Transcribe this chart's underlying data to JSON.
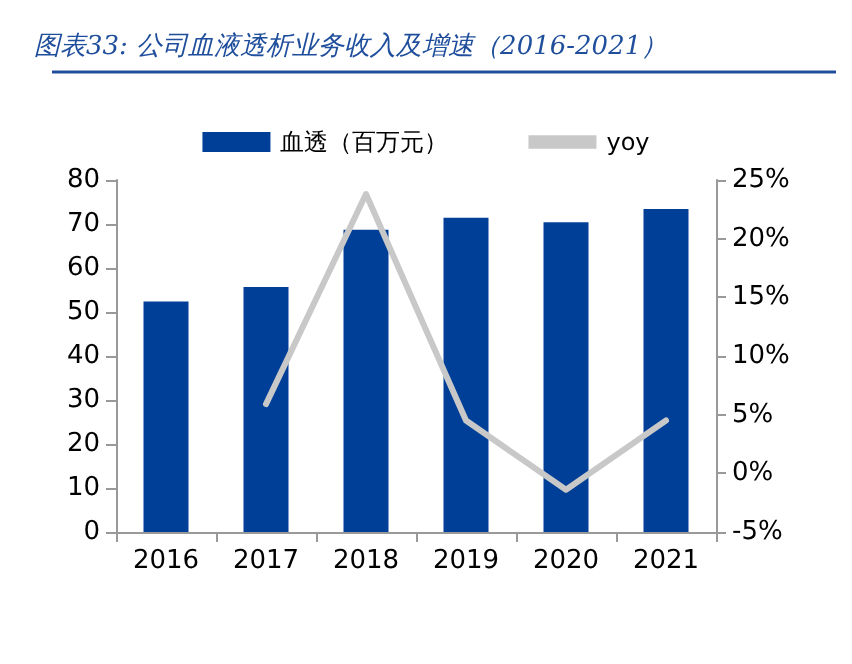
{
  "chart_data": {
    "type": "bar",
    "title": "图表33: 公司血液透析业务收入及增速（2016-2021）",
    "categories": [
      "2016",
      "2017",
      "2018",
      "2019",
      "2020",
      "2021"
    ],
    "series": [
      {
        "name": "血透（百万元）",
        "color": "#003f98",
        "values": [
          52.4,
          55.7,
          68.7,
          71.4,
          70.4,
          73.4
        ]
      },
      {
        "name": "yoy",
        "type": "line",
        "axis": "y2",
        "color": "#c8c8c8",
        "marker": "none",
        "values": [
          null,
          5.9,
          23.8,
          4.5,
          -1.4,
          4.5
        ]
      }
    ],
    "ylim": [
      0,
      80
    ],
    "yticks": [
      0,
      10,
      20,
      30,
      40,
      50,
      60,
      70,
      80
    ],
    "y2lim": [
      -5,
      25
    ],
    "y2ticks": [
      {
        "value": -5,
        "label": "-5%"
      },
      {
        "value": 0,
        "label": "0%"
      },
      {
        "value": 5,
        "label": "5%"
      },
      {
        "value": 10,
        "label": "10%"
      },
      {
        "value": 15,
        "label": "15%"
      },
      {
        "value": 20,
        "label": "20%"
      },
      {
        "value": 25,
        "label": "25%"
      }
    ],
    "grid": false,
    "legend": "top"
  }
}
